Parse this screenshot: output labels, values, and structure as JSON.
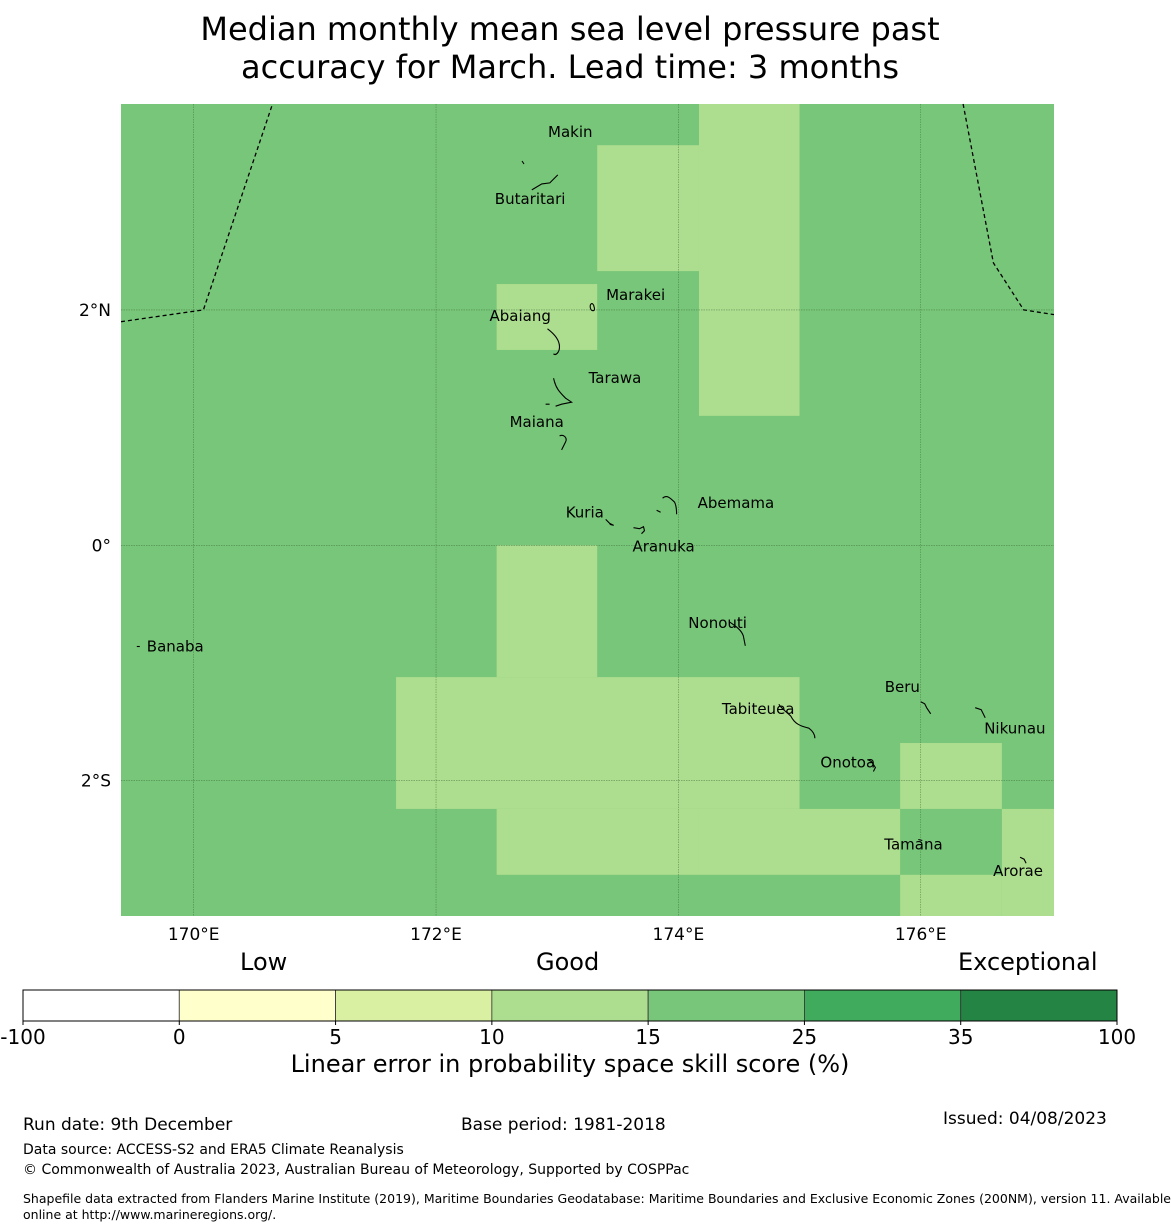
{
  "title": {
    "line1": "Median monthly mean sea level pressure past",
    "line2": "accuracy for March. Lead time: 3 months"
  },
  "map": {
    "lon_range": [
      169.4,
      177.1
    ],
    "lat_range": [
      -3.15,
      3.75
    ],
    "x_ticks": [
      {
        "value": 170,
        "label": "170°E"
      },
      {
        "value": 172,
        "label": "172°E"
      },
      {
        "value": 174,
        "label": "174°E"
      },
      {
        "value": 176,
        "label": "176°E"
      }
    ],
    "y_ticks": [
      {
        "value": 2,
        "label": "2°N"
      },
      {
        "value": 0,
        "label": "0°"
      },
      {
        "value": -2,
        "label": "2°S"
      }
    ],
    "background_category": "15-25",
    "light_cells": [
      {
        "lon": [
          173.33,
          174.17
        ],
        "lat": [
          2.33,
          3.4
        ]
      },
      {
        "lon": [
          174.17,
          175.0
        ],
        "lat": [
          1.1,
          3.75
        ]
      },
      {
        "lon": [
          172.5,
          173.33
        ],
        "lat": [
          1.66,
          2.22
        ]
      },
      {
        "lon": [
          172.5,
          173.33
        ],
        "lat": [
          -1.12,
          0.0
        ]
      },
      {
        "lon": [
          171.67,
          175.0
        ],
        "lat": [
          -2.24,
          -1.12
        ]
      },
      {
        "lon": [
          172.5,
          174.17
        ],
        "lat": [
          -2.8,
          -2.24
        ]
      },
      {
        "lon": [
          174.17,
          175.83
        ],
        "lat": [
          -2.8,
          -2.24
        ]
      },
      {
        "lon": [
          175.83,
          176.67
        ],
        "lat": [
          -2.24,
          -1.68
        ]
      },
      {
        "lon": [
          176.67,
          177.1
        ],
        "lat": [
          -3.15,
          -2.24
        ]
      },
      {
        "lon": [
          175.83,
          176.67
        ],
        "lat": [
          -3.15,
          -2.8
        ]
      }
    ],
    "places": [
      {
        "name": "Makin",
        "lon": 172.99,
        "lat": 3.3
      },
      {
        "name": "Butaritari",
        "lon": 172.79,
        "lat": 3.02
      },
      {
        "name": "Marakei",
        "lon": 173.28,
        "lat": 2.0
      },
      {
        "name": "Abaiang",
        "lon": 172.92,
        "lat": 1.84
      },
      {
        "name": "Tarawa",
        "lon": 172.97,
        "lat": 1.42
      },
      {
        "name": "Maiana",
        "lon": 173.02,
        "lat": 0.93
      },
      {
        "name": "Abemama",
        "lon": 173.87,
        "lat": 0.4
      },
      {
        "name": "Kuria",
        "lon": 173.4,
        "lat": 0.22
      },
      {
        "name": "Aranuka",
        "lon": 173.63,
        "lat": 0.15
      },
      {
        "name": "Nonouti",
        "lon": 174.42,
        "lat": -0.65
      },
      {
        "name": "Banaba",
        "lon": 169.53,
        "lat": -0.86
      },
      {
        "name": "Tabiteuea",
        "lon": 174.83,
        "lat": -1.35
      },
      {
        "name": "Beru",
        "lon": 176.0,
        "lat": -1.33
      },
      {
        "name": "Nikunau",
        "lon": 176.45,
        "lat": -1.38
      },
      {
        "name": "Onotoa",
        "lon": 175.56,
        "lat": -1.82
      },
      {
        "name": "Tamana",
        "lon": 175.98,
        "lat": -2.5
      },
      {
        "name": "Arorae",
        "lon": 176.82,
        "lat": -2.65
      }
    ],
    "boundary_west": [
      [
        169.4,
        1.9
      ],
      [
        170.08,
        2.0
      ],
      [
        170.65,
        3.75
      ]
    ],
    "boundary_east": [
      [
        176.35,
        3.75
      ],
      [
        176.6,
        2.4
      ],
      [
        176.85,
        2.0
      ],
      [
        177.1,
        1.96
      ]
    ]
  },
  "colorbar": {
    "categories": [
      "Low",
      "Good",
      "Exceptional"
    ],
    "boundaries": [
      "-100",
      "0",
      "5",
      "10",
      "15",
      "25",
      "35",
      "100"
    ],
    "colors": [
      "#ffffff",
      "#ffffcc",
      "#d9f0a3",
      "#addd8e",
      "#78c679",
      "#41ab5d",
      "#238443"
    ],
    "label": "Linear error in probability space skill score (%)"
  },
  "footer": {
    "run_date": "Run date: 9th December",
    "base_period": "Base period: 1981-2018",
    "issued": "Issued: 04/08/2023",
    "data_source": "Data source: ACCESS-S2 and ERA5 Climate Reanalysis",
    "copyright": "© Commonwealth of Australia 2023, Australian Bureau of Meteorology, Supported by COSPPac",
    "shapefile_line1": "Shapefile data extracted from Flanders Marine Institute (2019), Maritime Boundaries Geodatabase: Maritime Boundaries and Exclusive Economic Zones (200NM), version 11. Available",
    "shapefile_line2": "online at http://www.marineregions.org/."
  }
}
